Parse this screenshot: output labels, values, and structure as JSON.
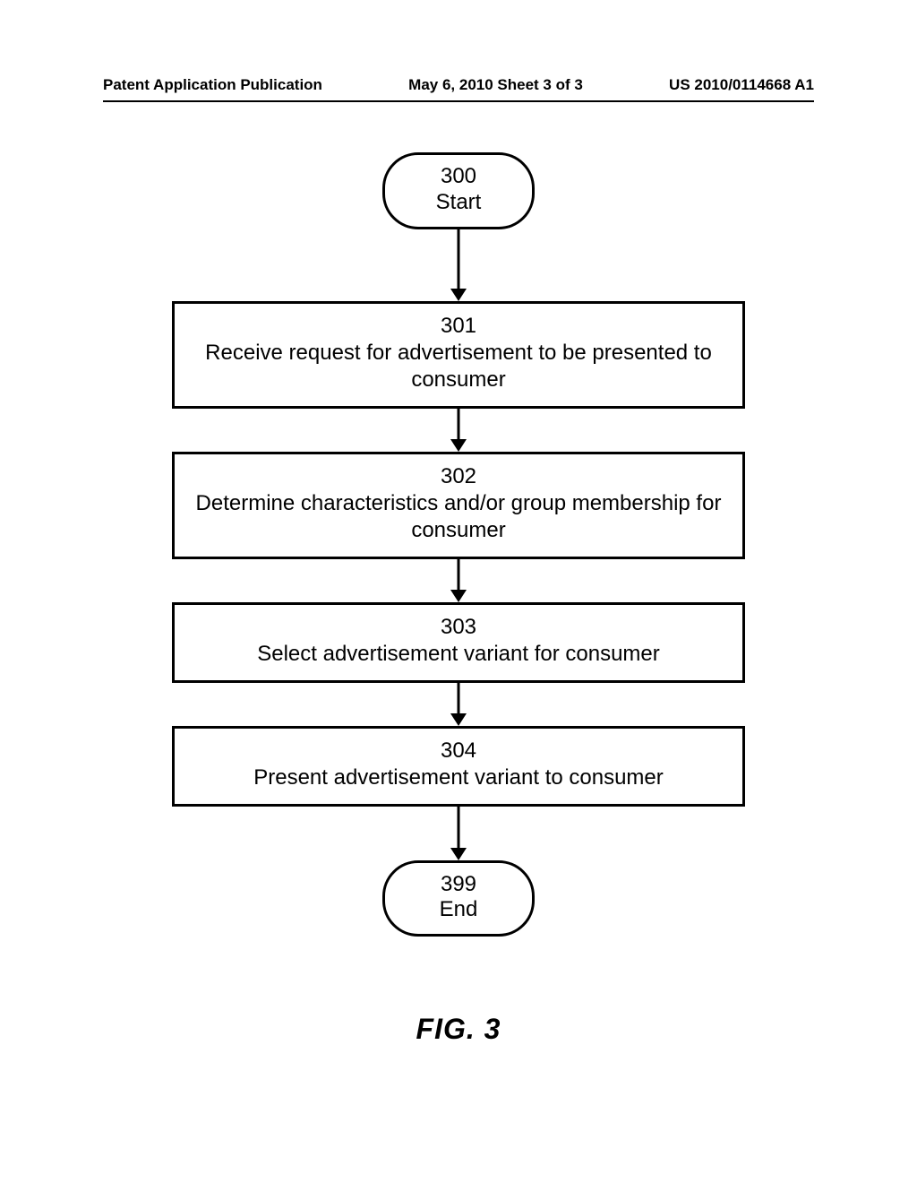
{
  "header": {
    "left": "Patent Application Publication",
    "center": "May 6, 2010  Sheet 3 of 3",
    "right": "US 2010/0114668 A1"
  },
  "flowchart": {
    "type": "flowchart",
    "stroke_color": "#000000",
    "stroke_width": 3,
    "background_color": "#ffffff",
    "font_family": "Arial",
    "font_size": 24,
    "terminal_width": 170,
    "terminal_radius": 40,
    "process_width": 640,
    "nodes": [
      {
        "id": "n300",
        "shape": "terminal",
        "num": "300",
        "label": "Start"
      },
      {
        "id": "n301",
        "shape": "process",
        "num": "301",
        "label": "Receive request for advertisement to be presented to consumer"
      },
      {
        "id": "n302",
        "shape": "process",
        "num": "302",
        "label": "Determine characteristics and/or group membership for consumer"
      },
      {
        "id": "n303",
        "shape": "process",
        "num": "303",
        "label": "Select advertisement variant for consumer"
      },
      {
        "id": "n304",
        "shape": "process",
        "num": "304",
        "label": "Present advertisement variant to consumer"
      },
      {
        "id": "n399",
        "shape": "terminal",
        "num": "399",
        "label": "End"
      }
    ],
    "edges": [
      {
        "from": "n300",
        "to": "n301",
        "len": 80
      },
      {
        "from": "n301",
        "to": "n302",
        "len": 48
      },
      {
        "from": "n302",
        "to": "n303",
        "len": 48
      },
      {
        "from": "n303",
        "to": "n304",
        "len": 48
      },
      {
        "from": "n304",
        "to": "n399",
        "len": 60
      }
    ],
    "arrow_head": {
      "width": 18,
      "height": 14
    }
  },
  "figure_label": "FIG. 3"
}
